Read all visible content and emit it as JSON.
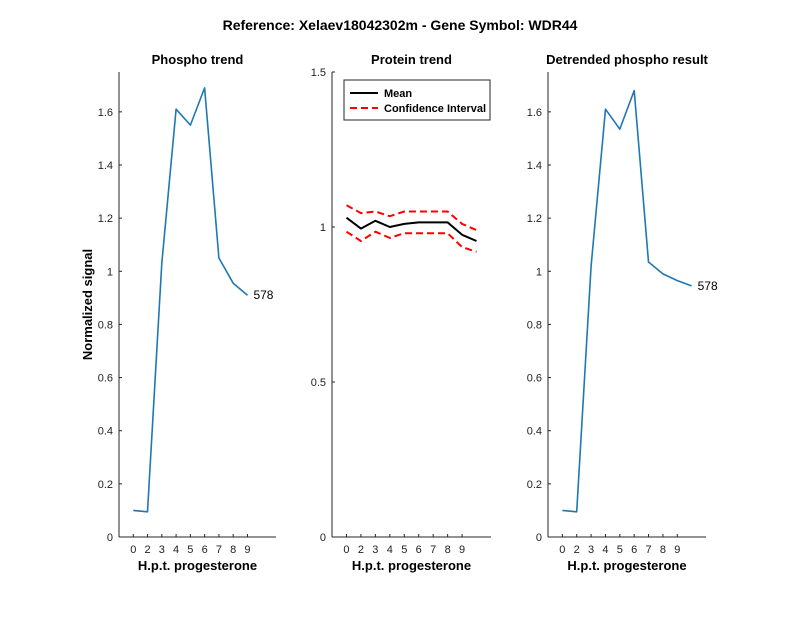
{
  "suptitle": "Reference:  Xelaev18042302m - Gene Symbol:  WDR44",
  "colors": {
    "line": "#1f77b4",
    "mean": "#000000",
    "ci": "#ff0000",
    "axis": "#262626"
  },
  "chart_data": [
    {
      "type": "line",
      "title": "Phospho trend",
      "xlabel": "H.p.t. progesterone",
      "ylabel": "Normalized signal",
      "xlim": [
        -1,
        10
      ],
      "ylim": [
        0,
        1.75
      ],
      "xticks": [
        "0",
        "2",
        "3",
        "4",
        "5",
        "6",
        "7",
        "8",
        "9"
      ],
      "yticks": [
        "0",
        "0.2",
        "0.4",
        "0.6",
        "0.8",
        "1",
        "1.2",
        "1.4",
        "1.6"
      ],
      "series": [
        {
          "x": [
            0,
            1,
            2,
            3,
            4,
            5,
            6,
            7,
            8
          ],
          "values": [
            0.1,
            0.095,
            1.03,
            1.61,
            1.55,
            1.69,
            1.05,
            0.955,
            0.91
          ]
        }
      ],
      "annotation": "578"
    },
    {
      "type": "line",
      "title": "Protein trend",
      "xlabel": "H.p.t. progesterone",
      "ylabel": "",
      "xlim": [
        -1,
        10
      ],
      "ylim": [
        0,
        1.5
      ],
      "xticks": [
        "0",
        "2",
        "3",
        "4",
        "5",
        "6",
        "7",
        "8",
        "9"
      ],
      "yticks": [
        "0",
        "0.5",
        "1",
        "1.5"
      ],
      "legend": {
        "placement": "top-left",
        "entries": [
          "Mean",
          "Confidence Interval"
        ]
      },
      "series": [
        {
          "name": "Mean",
          "x": [
            0,
            1,
            2,
            3,
            4,
            5,
            6,
            7,
            8,
            9
          ],
          "values": [
            1.03,
            0.995,
            1.02,
            1.0,
            1.01,
            1.015,
            1.015,
            1.015,
            0.975,
            0.955
          ]
        },
        {
          "name": "Confidence Interval",
          "x": [
            0,
            1,
            2,
            3,
            4,
            5,
            6,
            7,
            8,
            9
          ],
          "values": [
            1.07,
            1.045,
            1.05,
            1.035,
            1.05,
            1.05,
            1.05,
            1.05,
            1.01,
            0.99
          ]
        },
        {
          "name": "Confidence Interval",
          "x": [
            0,
            1,
            2,
            3,
            4,
            5,
            6,
            7,
            8,
            9
          ],
          "values": [
            0.985,
            0.955,
            0.985,
            0.965,
            0.98,
            0.98,
            0.98,
            0.98,
            0.935,
            0.92
          ]
        }
      ]
    },
    {
      "type": "line",
      "title": "Detrended phospho result",
      "xlabel": "H.p.t. progesterone",
      "ylabel": "",
      "xlim": [
        -1,
        10
      ],
      "ylim": [
        0,
        1.75
      ],
      "xticks": [
        "0",
        "2",
        "3",
        "4",
        "5",
        "6",
        "7",
        "8",
        "9"
      ],
      "yticks": [
        "0",
        "0.2",
        "0.4",
        "0.6",
        "0.8",
        "1",
        "1.2",
        "1.4",
        "1.6"
      ],
      "series": [
        {
          "x": [
            0,
            1,
            2,
            3,
            4,
            5,
            6,
            7,
            8,
            9
          ],
          "values": [
            0.1,
            0.095,
            1.02,
            1.61,
            1.535,
            1.68,
            1.035,
            0.99,
            0.965,
            0.945
          ]
        }
      ],
      "annotation": "578"
    }
  ]
}
